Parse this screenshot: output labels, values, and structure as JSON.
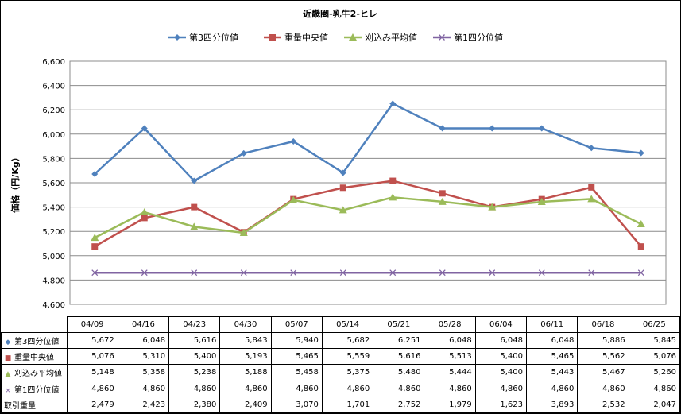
{
  "chart_data": {
    "type": "line",
    "title": "近畿圏-乳牛2-ヒレ",
    "ylabel": "価格（円/Kg）",
    "xlabel": "",
    "ylim": [
      4600,
      6600
    ],
    "yticks": [
      "4,600",
      "4,800",
      "5,000",
      "5,200",
      "5,400",
      "5,600",
      "5,800",
      "6,000",
      "6,200",
      "6,400",
      "6,600"
    ],
    "grid": true,
    "legend": "top",
    "categories": [
      "04/09",
      "04/16",
      "04/23",
      "04/30",
      "05/07",
      "05/14",
      "05/21",
      "05/28",
      "06/04",
      "06/11",
      "06/18",
      "06/25"
    ],
    "series": [
      {
        "name": "第3四分位値",
        "color": "#4F81BD",
        "marker": "diamond",
        "values": [
          5672,
          6048,
          5616,
          5843,
          5940,
          5682,
          6251,
          6048,
          6048,
          6048,
          5886,
          5845
        ],
        "labels": [
          "5,672",
          "6,048",
          "5,616",
          "5,843",
          "5,940",
          "5,682",
          "6,251",
          "6,048",
          "6,048",
          "6,048",
          "5,886",
          "5,845"
        ]
      },
      {
        "name": "重量中央値",
        "color": "#C0504D",
        "marker": "square",
        "values": [
          5076,
          5310,
          5400,
          5193,
          5465,
          5559,
          5616,
          5513,
          5400,
          5465,
          5562,
          5076
        ],
        "labels": [
          "5,076",
          "5,310",
          "5,400",
          "5,193",
          "5,465",
          "5,559",
          "5,616",
          "5,513",
          "5,400",
          "5,465",
          "5,562",
          "5,076"
        ]
      },
      {
        "name": "刈込み平均値",
        "color": "#9BBB59",
        "marker": "triangle",
        "values": [
          5148,
          5358,
          5238,
          5188,
          5458,
          5375,
          5480,
          5444,
          5400,
          5443,
          5467,
          5260
        ],
        "labels": [
          "5,148",
          "5,358",
          "5,238",
          "5,188",
          "5,458",
          "5,375",
          "5,480",
          "5,444",
          "5,400",
          "5,443",
          "5,467",
          "5,260"
        ]
      },
      {
        "name": "第1四分位値",
        "color": "#8064A2",
        "marker": "x",
        "values": [
          4860,
          4860,
          4860,
          4860,
          4860,
          4860,
          4860,
          4860,
          4860,
          4860,
          4860,
          4860
        ],
        "labels": [
          "4,860",
          "4,860",
          "4,860",
          "4,860",
          "4,860",
          "4,860",
          "4,860",
          "4,860",
          "4,860",
          "4,860",
          "4,860",
          "4,860"
        ]
      }
    ],
    "table_extra_row": {
      "name": "取引重量",
      "labels": [
        "2,479",
        "2,423",
        "2,380",
        "2,409",
        "3,070",
        "1,701",
        "2,752",
        "1,979",
        "1,623",
        "3,893",
        "2,532",
        "2,047"
      ]
    }
  }
}
